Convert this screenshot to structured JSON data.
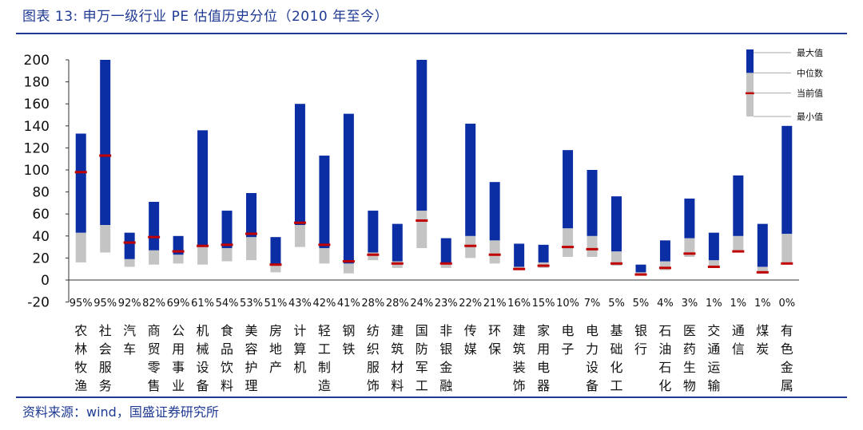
{
  "title": "图表 13:  申万一级行业 PE 估值历史分位（2010 年至今）",
  "source": "资料来源：wind，国盛证券研究所",
  "chart_data": {
    "type": "bar",
    "subtype": "floating-range",
    "ylim": [
      -20,
      200
    ],
    "yticks": [
      -20,
      0,
      20,
      40,
      60,
      80,
      100,
      120,
      140,
      160,
      180,
      200
    ],
    "legend": {
      "position": "top-right",
      "entries": [
        "最大值",
        "中位数",
        "当前值",
        "最小值"
      ]
    },
    "colors": {
      "max_segment": "#0c2ea4",
      "min_segment": "#c4c4c4",
      "current": "#c00000"
    },
    "categories": [
      {
        "name": "农林牧渔",
        "pct": "95%",
        "min": 16,
        "median": 43,
        "max": 133,
        "current": 98
      },
      {
        "name": "社会服务",
        "pct": "95%",
        "min": 25,
        "median": 50,
        "max": 200,
        "current": 113
      },
      {
        "name": "汽车",
        "pct": "92%",
        "min": 12,
        "median": 19,
        "max": 43,
        "current": 34
      },
      {
        "name": "商贸零售",
        "pct": "82%",
        "min": 14,
        "median": 27,
        "max": 71,
        "current": 39
      },
      {
        "name": "公用事业",
        "pct": "69%",
        "min": 15,
        "median": 23,
        "max": 40,
        "current": 26
      },
      {
        "name": "机械设备",
        "pct": "61%",
        "min": 14,
        "median": 30,
        "max": 136,
        "current": 31
      },
      {
        "name": "食品饮料",
        "pct": "54%",
        "min": 17,
        "median": 29,
        "max": 63,
        "current": 32
      },
      {
        "name": "美容护理",
        "pct": "53%",
        "min": 18,
        "median": 39,
        "max": 79,
        "current": 42
      },
      {
        "name": "房地产",
        "pct": "51%",
        "min": 7,
        "median": 13,
        "max": 39,
        "current": 14
      },
      {
        "name": "计算机",
        "pct": "43%",
        "min": 30,
        "median": 50,
        "max": 160,
        "current": 52
      },
      {
        "name": "轻工制造",
        "pct": "42%",
        "min": 15,
        "median": 29,
        "max": 113,
        "current": 32
      },
      {
        "name": "钢铁",
        "pct": "41%",
        "min": 6,
        "median": 15,
        "max": 151,
        "current": 17
      },
      {
        "name": "纺织服饰",
        "pct": "28%",
        "min": 18,
        "median": 25,
        "max": 63,
        "current": 23
      },
      {
        "name": "建筑材料",
        "pct": "28%",
        "min": 11,
        "median": 17,
        "max": 51,
        "current": 15
      },
      {
        "name": "国防军工",
        "pct": "24%",
        "min": 29,
        "median": 63,
        "max": 200,
        "current": 54
      },
      {
        "name": "非银金融",
        "pct": "23%",
        "min": 11,
        "median": 15,
        "max": 38,
        "current": 15
      },
      {
        "name": "传媒",
        "pct": "22%",
        "min": 20,
        "median": 40,
        "max": 142,
        "current": 31
      },
      {
        "name": "环保",
        "pct": "21%",
        "min": 15,
        "median": 36,
        "max": 89,
        "current": 23
      },
      {
        "name": "建筑装饰",
        "pct": "16%",
        "min": 9,
        "median": 12,
        "max": 33,
        "current": 10
      },
      {
        "name": "家用电器",
        "pct": "15%",
        "min": 11,
        "median": 16,
        "max": 32,
        "current": 13
      },
      {
        "name": "电子",
        "pct": "10%",
        "min": 21,
        "median": 47,
        "max": 118,
        "current": 30
      },
      {
        "name": "电力设备",
        "pct": "7%",
        "min": 21,
        "median": 40,
        "max": 100,
        "current": 28
      },
      {
        "name": "基础化工",
        "pct": "5%",
        "min": 13,
        "median": 26,
        "max": 76,
        "current": 15
      },
      {
        "name": "银行",
        "pct": "5%",
        "min": 4,
        "median": 7,
        "max": 14,
        "current": 5
      },
      {
        "name": "石油石化",
        "pct": "4%",
        "min": 9,
        "median": 17,
        "max": 36,
        "current": 11
      },
      {
        "name": "医药生物",
        "pct": "3%",
        "min": 21,
        "median": 38,
        "max": 74,
        "current": 24
      },
      {
        "name": "交通运输",
        "pct": "1%",
        "min": 11,
        "median": 18,
        "max": 43,
        "current": 12
      },
      {
        "name": "通信",
        "pct": "1%",
        "min": 25,
        "median": 40,
        "max": 95,
        "current": 26
      },
      {
        "name": "煤炭",
        "pct": "1%",
        "min": 6,
        "median": 12,
        "max": 51,
        "current": 7
      },
      {
        "name": "有色金属",
        "pct": "0%",
        "min": 15,
        "median": 42,
        "max": 140,
        "current": 15
      }
    ]
  }
}
